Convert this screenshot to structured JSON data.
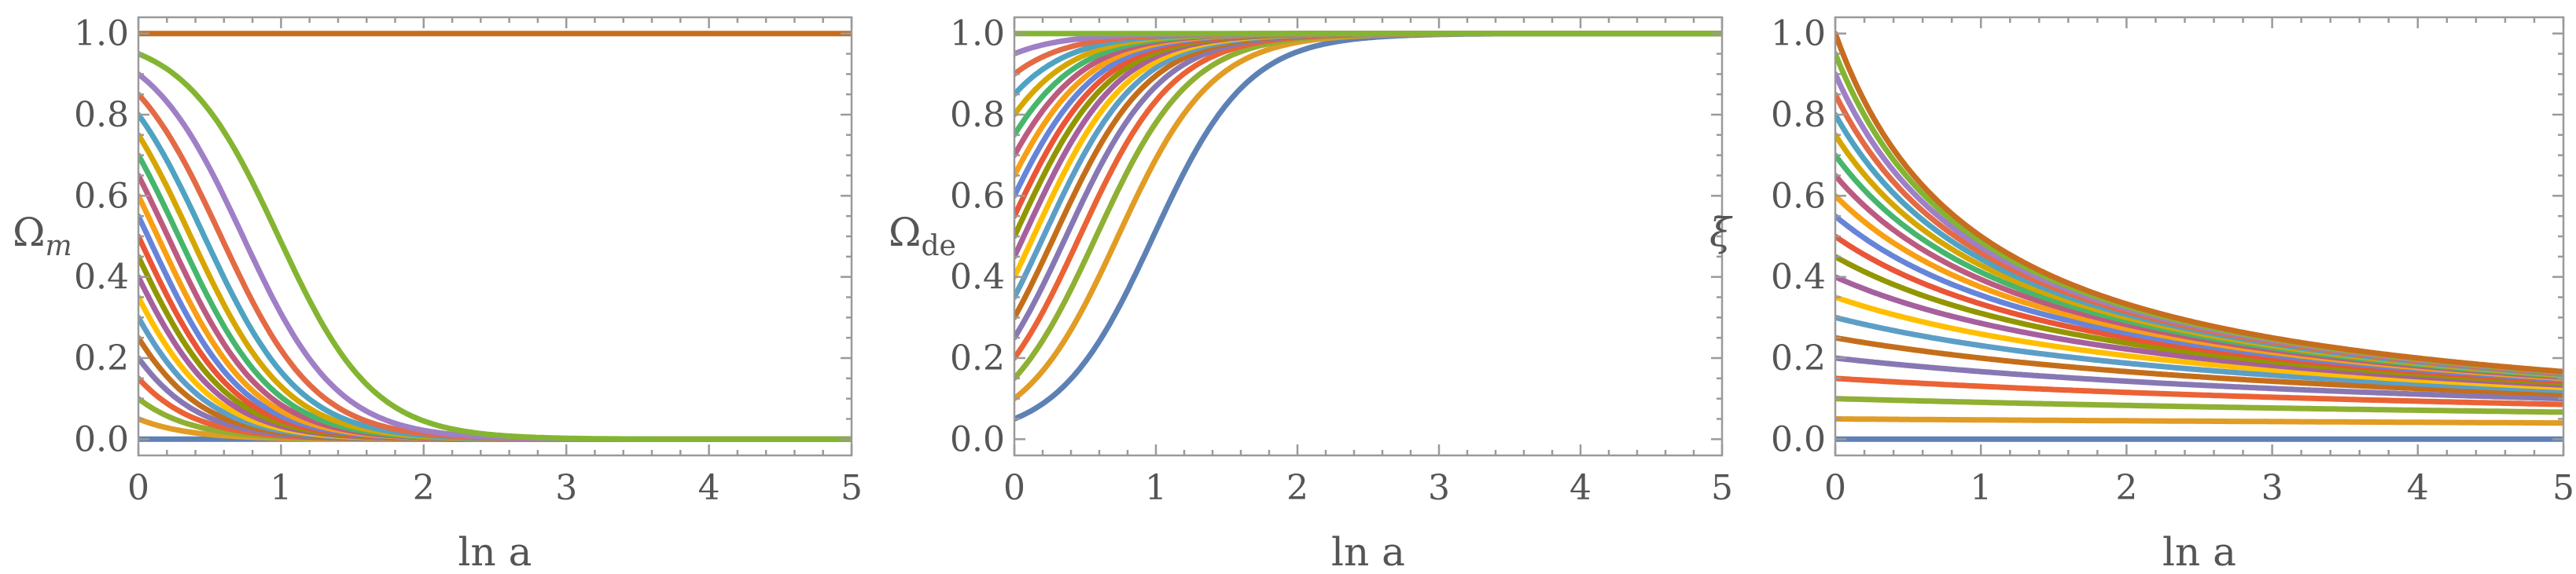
{
  "chart_data": [
    {
      "type": "line",
      "ylabel_base": "Ω",
      "ylabel_sub": "m",
      "xlabel": "ln a",
      "xlim": [
        0,
        5
      ],
      "ylim": [
        -0.04,
        1.04
      ],
      "xticks": [
        0,
        1,
        2,
        3,
        4,
        5
      ],
      "yticks": [
        0.0,
        0.2,
        0.4,
        0.6,
        0.8,
        1.0
      ],
      "xtick_labels": [
        "0",
        "1",
        "2",
        "3",
        "4",
        "5"
      ],
      "ytick_labels": [
        "0.0",
        "0.2",
        "0.4",
        "0.6",
        "0.8",
        "1.0"
      ],
      "grid": false,
      "family": "omega_m",
      "initial_values": [
        0.0,
        0.05,
        0.1,
        0.15,
        0.2,
        0.25,
        0.3,
        0.35,
        0.4,
        0.45,
        0.5,
        0.55,
        0.6,
        0.65,
        0.7,
        0.75,
        0.8,
        0.85,
        0.9,
        0.95,
        1.0
      ],
      "decay_rate": 3.0
    },
    {
      "type": "line",
      "ylabel_base": "Ω",
      "ylabel_sub": "de",
      "xlabel": "ln a",
      "xlim": [
        0,
        5
      ],
      "ylim": [
        -0.04,
        1.04
      ],
      "xticks": [
        0,
        1,
        2,
        3,
        4,
        5
      ],
      "yticks": [
        0.0,
        0.2,
        0.4,
        0.6,
        0.8,
        1.0
      ],
      "xtick_labels": [
        "0",
        "1",
        "2",
        "3",
        "4",
        "5"
      ],
      "ytick_labels": [
        "0.0",
        "0.2",
        "0.4",
        "0.6",
        "0.8",
        "1.0"
      ],
      "grid": false,
      "family": "omega_de",
      "initial_values": [
        0.05,
        0.1,
        0.15,
        0.2,
        0.25,
        0.3,
        0.35,
        0.4,
        0.45,
        0.5,
        0.55,
        0.6,
        0.65,
        0.7,
        0.75,
        0.8,
        0.85,
        0.9,
        0.95,
        1.0
      ],
      "decay_rate": 3.0
    },
    {
      "type": "line",
      "ylabel_base": "ξ",
      "ylabel_sub": "",
      "xlabel": "ln a",
      "xlim": [
        0,
        5
      ],
      "ylim": [
        -0.04,
        1.04
      ],
      "xticks": [
        0,
        1,
        2,
        3,
        4,
        5
      ],
      "yticks": [
        0.0,
        0.2,
        0.4,
        0.6,
        0.8,
        1.0
      ],
      "xtick_labels": [
        "0",
        "1",
        "2",
        "3",
        "4",
        "5"
      ],
      "ytick_labels": [
        "0.0",
        "0.2",
        "0.4",
        "0.6",
        "0.8",
        "1.0"
      ],
      "grid": false,
      "family": "xi",
      "initial_values": [
        0.0,
        0.05,
        0.1,
        0.15,
        0.2,
        0.25,
        0.3,
        0.35,
        0.4,
        0.45,
        0.5,
        0.55,
        0.6,
        0.65,
        0.7,
        0.75,
        0.8,
        0.85,
        0.9,
        0.95,
        1.0
      ],
      "rate_parameter": 1.0
    }
  ],
  "palette": [
    "#5E81B5",
    "#E19C24",
    "#8FB032",
    "#EB6235",
    "#8778B3",
    "#C56E1A",
    "#5D9EC7",
    "#FFBF00",
    "#A5609D",
    "#929600",
    "#E95536",
    "#6685D9",
    "#F89F13",
    "#BC5B80",
    "#47B66D",
    "#D6A600",
    "#4FA3C2",
    "#E36A44",
    "#9F7FC6",
    "#84B532",
    "#C76D1F"
  ]
}
